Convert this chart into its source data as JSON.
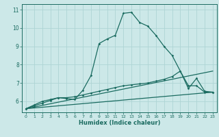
{
  "title": "",
  "xlabel": "Humidex (Indice chaleur)",
  "background_color": "#cce8e8",
  "grid_color": "#aed4d4",
  "line_color": "#1a6b60",
  "xlim": [
    -0.5,
    23.5
  ],
  "ylim": [
    5.4,
    11.3
  ],
  "xticks": [
    0,
    1,
    2,
    3,
    4,
    5,
    6,
    7,
    8,
    9,
    10,
    11,
    12,
    13,
    14,
    15,
    16,
    17,
    18,
    19,
    20,
    21,
    22,
    23
  ],
  "yticks": [
    6,
    7,
    8,
    9,
    10,
    11
  ],
  "line1_x": [
    0,
    1,
    2,
    3,
    4,
    5,
    6,
    7,
    8,
    9,
    10,
    11,
    12,
    13,
    14,
    15,
    16,
    17,
    18,
    19,
    20,
    21,
    22,
    23
  ],
  "line1_y": [
    5.6,
    5.8,
    6.0,
    6.1,
    6.2,
    6.15,
    6.1,
    6.6,
    7.4,
    9.15,
    9.4,
    9.6,
    10.8,
    10.85,
    10.3,
    10.1,
    9.6,
    9.0,
    8.5,
    7.65,
    6.7,
    7.25,
    6.55,
    6.5
  ],
  "line2_x": [
    0,
    1,
    2,
    3,
    4,
    5,
    6,
    7,
    8,
    9,
    10,
    11,
    12,
    13,
    14,
    15,
    16,
    17,
    18,
    19,
    20,
    21,
    22,
    23
  ],
  "line2_y": [
    5.6,
    5.75,
    5.9,
    6.05,
    6.2,
    6.2,
    6.25,
    6.35,
    6.45,
    6.55,
    6.65,
    6.75,
    6.85,
    6.9,
    6.95,
    7.0,
    7.1,
    7.2,
    7.35,
    7.65,
    6.85,
    6.85,
    6.5,
    6.5
  ],
  "line3_x": [
    0,
    23
  ],
  "line3_y": [
    5.6,
    6.5
  ],
  "line4_x": [
    0,
    23
  ],
  "line4_y": [
    5.6,
    7.65
  ]
}
